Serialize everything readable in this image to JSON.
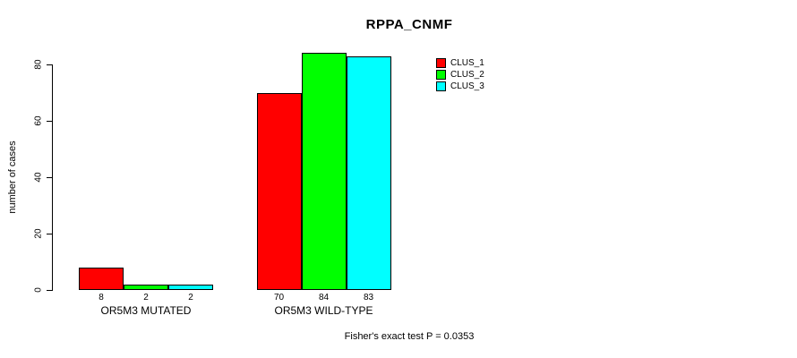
{
  "chart_data": {
    "type": "bar",
    "title": "RPPA_CNMF",
    "ylabel": "number of cases",
    "xlabel": "",
    "categories": [
      "OR5M3 MUTATED",
      "OR5M3 WILD-TYPE"
    ],
    "series": [
      {
        "name": "CLUS_1",
        "color": "#ff0000",
        "values": [
          8,
          70
        ]
      },
      {
        "name": "CLUS_2",
        "color": "#00ff00",
        "values": [
          2,
          84
        ]
      },
      {
        "name": "CLUS_3",
        "color": "#00ffff",
        "values": [
          2,
          83
        ]
      }
    ],
    "yticks": [
      0,
      20,
      40,
      60,
      80
    ],
    "ylim": [
      0,
      84
    ],
    "grid": false,
    "legend_position": "top-right-inside",
    "bar_value_labels_shown": true,
    "annotation": "Fisher's exact test P = 0.0353"
  },
  "colors": {
    "background": "#ffffff",
    "axis": "#000000",
    "text": "#000000"
  }
}
